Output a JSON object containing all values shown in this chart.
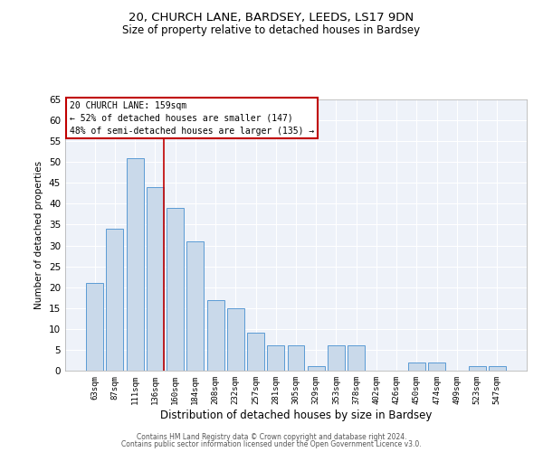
{
  "title_line1": "20, CHURCH LANE, BARDSEY, LEEDS, LS17 9DN",
  "title_line2": "Size of property relative to detached houses in Bardsey",
  "xlabel": "Distribution of detached houses by size in Bardsey",
  "ylabel": "Number of detached properties",
  "categories": [
    "63sqm",
    "87sqm",
    "111sqm",
    "136sqm",
    "160sqm",
    "184sqm",
    "208sqm",
    "232sqm",
    "257sqm",
    "281sqm",
    "305sqm",
    "329sqm",
    "353sqm",
    "378sqm",
    "402sqm",
    "426sqm",
    "450sqm",
    "474sqm",
    "499sqm",
    "523sqm",
    "547sqm"
  ],
  "values": [
    21,
    34,
    51,
    44,
    39,
    31,
    17,
    15,
    9,
    6,
    6,
    1,
    6,
    6,
    0,
    0,
    2,
    2,
    0,
    1,
    1
  ],
  "bar_color": "#c9d9ea",
  "bar_edge_color": "#5b9bd5",
  "highlight_bar_index": 3,
  "highlight_color": "#c00000",
  "annotation_text": "20 CHURCH LANE: 159sqm\n← 52% of detached houses are smaller (147)\n48% of semi-detached houses are larger (135) →",
  "ylim": [
    0,
    65
  ],
  "yticks": [
    0,
    5,
    10,
    15,
    20,
    25,
    30,
    35,
    40,
    45,
    50,
    55,
    60,
    65
  ],
  "bg_color": "#eef2f9",
  "grid_color": "#ffffff",
  "footer_line1": "Contains HM Land Registry data © Crown copyright and database right 2024.",
  "footer_line2": "Contains public sector information licensed under the Open Government Licence v3.0."
}
